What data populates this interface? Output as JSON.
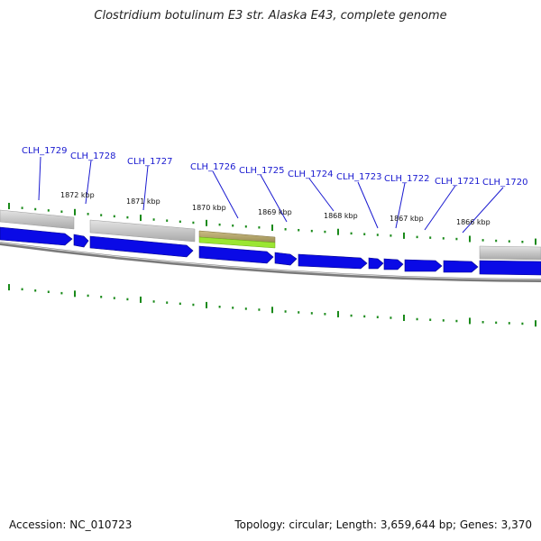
{
  "title": "Clostridium botulinum E3 str. Alaska E43, complete genome",
  "footer": {
    "accession": "Accession: NC_010723",
    "summary": "Topology: circular; Length: 3,659,644 bp; Genes: 3,370"
  },
  "colors": {
    "gene_blue": "#0a0ae6",
    "gray_band": "#c8c8c8",
    "olive_band": "#b9aa6e",
    "green_band": "#9be632",
    "tick_green": "#1a8a1a",
    "backbone": "#8a8a8a",
    "label_blue": "#1a1ad0"
  },
  "gene_labels": [
    "CLH_1729",
    "CLH_1728",
    "CLH_1727",
    "CLH_1726",
    "CLH_1725",
    "CLH_1724",
    "CLH_1723",
    "CLH_1722",
    "CLH_1721",
    "CLH_1720"
  ],
  "kbp_labels": [
    "1872 kbp",
    "1871 kbp",
    "1870 kbp",
    "1869 kbp",
    "1868 kbp",
    "1867 kbp",
    "1866 kbp"
  ]
}
